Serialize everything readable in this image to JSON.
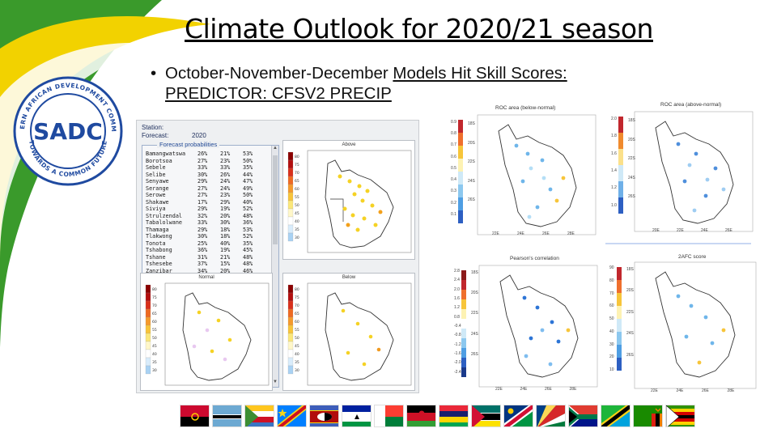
{
  "slide": {
    "title": "Climate Outlook for 2020/21 season",
    "bullet_prefix": "October-November-December ",
    "bullet_underlined": "Models Hit Skill Scores:",
    "bullet_line2": "PREDICTOR: CFSV2 PRECIP"
  },
  "logo": {
    "ring_text_top": "SOUTHERN AFRICAN DEVELOPMENT COMMUNITY",
    "ring_text_bottom": "TOWARDS A COMMON FUTURE",
    "mark": "SADC"
  },
  "station_panel": {
    "station_label": "Station:",
    "station_value": "",
    "forecast_label": "Forecast:",
    "forecast_value": "2020",
    "probabilities_title": "Forecast probabilities",
    "rows": [
      [
        "Bamangwatswa",
        "26%",
        "21%",
        "53%"
      ],
      [
        "Borotsoa",
        "27%",
        "23%",
        "50%"
      ],
      [
        "Sebele",
        "33%",
        "33%",
        "35%"
      ],
      [
        "Selibe",
        "30%",
        "26%",
        "44%"
      ],
      [
        "Senyawe",
        "29%",
        "24%",
        "47%"
      ],
      [
        "Serange",
        "27%",
        "24%",
        "49%"
      ],
      [
        "Serowe",
        "27%",
        "23%",
        "50%"
      ],
      [
        "Shakawe",
        "17%",
        "29%",
        "40%"
      ],
      [
        "Siviya",
        "29%",
        "19%",
        "52%"
      ],
      [
        "Strulzendal",
        "32%",
        "20%",
        "48%"
      ],
      [
        "Tabalolwane",
        "33%",
        "30%",
        "36%"
      ],
      [
        "Thamaga",
        "29%",
        "18%",
        "53%"
      ],
      [
        "Tlakwong",
        "30%",
        "18%",
        "52%"
      ],
      [
        "Tonota",
        "25%",
        "40%",
        "35%"
      ],
      [
        "Tshabong",
        "36%",
        "19%",
        "45%"
      ],
      [
        "Tshane",
        "31%",
        "21%",
        "48%"
      ],
      [
        "Tshesebe",
        "37%",
        "15%",
        "48%"
      ],
      [
        "Zanzibar",
        "34%",
        "20%",
        "46%"
      ]
    ],
    "maps": [
      {
        "label": "Above"
      },
      {
        "label": "Normal"
      },
      {
        "label": "Below"
      }
    ],
    "colorbar_ticks": [
      "80",
      "75",
      "70",
      "65",
      "60",
      "55",
      "50",
      "45",
      "40",
      "35",
      "30"
    ],
    "lat_ticks": [
      "18S",
      "20S",
      "22S",
      "24S",
      "26S"
    ]
  },
  "skill_figures": [
    {
      "title": "ROC area (below-normal)",
      "ticks": [
        "0.9",
        "0.8",
        "0.7",
        "0.6",
        "0.5",
        "0.4",
        "0.3",
        "0.2",
        "0.1"
      ],
      "lat": [
        "18S",
        "20S",
        "22S",
        "24S",
        "26S"
      ],
      "lon": [
        "22E",
        "24E",
        "26E",
        "28E"
      ]
    },
    {
      "title": "ROC area (above-normal)",
      "ticks": [
        "2.0",
        "1.8",
        "1.6",
        "1.4",
        "1.2",
        "1.0"
      ],
      "lat": [
        "18S",
        "20S",
        "22S",
        "24S",
        "26S"
      ],
      "lon": [
        "20E",
        "22E",
        "24E",
        "26E"
      ]
    },
    {
      "title": "Pearson's correlation",
      "ticks": [
        "2.8",
        "2.4",
        "2.0",
        "1.6",
        "1.2",
        "0.8",
        "-0.4",
        "-0.8",
        "-1.2",
        "-1.6",
        "-2.0",
        "-2.4"
      ],
      "lat": [
        "18S",
        "20S",
        "22S",
        "24S",
        "26S"
      ],
      "lon": [
        "22E",
        "24E",
        "26E",
        "28E"
      ]
    },
    {
      "title": "2AFC score",
      "ticks": [
        "90",
        "80",
        "70",
        "60",
        "50",
        "40",
        "30",
        "20",
        "10"
      ],
      "lat": [
        "18S",
        "20S",
        "22S",
        "24S",
        "26S"
      ],
      "lon": [
        "22E",
        "24E",
        "26E",
        "28E"
      ]
    }
  ],
  "colors": {
    "swoosh_green": "#3a9a2b",
    "swoosh_yellow": "#f2d200",
    "swoosh_blue": "#1a4e9e",
    "logo_blue": "#1f4aa0"
  },
  "flags": [
    "Angola",
    "Botswana",
    "Comoros",
    "DR Congo",
    "Eswatini",
    "Lesotho",
    "Madagascar",
    "Malawi",
    "Mauritius",
    "Mozambique",
    "Namibia",
    "Seychelles",
    "South Africa",
    "Tanzania",
    "Zambia",
    "Zimbabwe"
  ]
}
